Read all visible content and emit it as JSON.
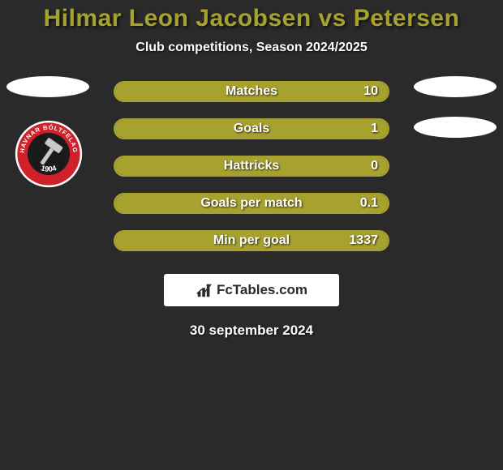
{
  "colors": {
    "background": "#2a2a2a",
    "title": "#a7a22f",
    "row_border": "#a7a22f",
    "bar_fill": "#a7a22f",
    "text": "#ffffff",
    "logo_strip_bg": "#ffffff",
    "logo_text": "#2a2a2a",
    "badge_outer": "#ffffff",
    "badge_ring": "#d0202a",
    "badge_inner": "#1a1a1a",
    "badge_ring_text": "#ffffff"
  },
  "title": {
    "text": "Hilmar Leon Jacobsen vs Petersen",
    "fontsize": 30
  },
  "subtitle": {
    "text": "Club competitions, Season 2024/2025",
    "fontsize": 16
  },
  "stats": {
    "label_fontsize": 16,
    "value_fontsize": 16,
    "rows": [
      {
        "label": "Matches",
        "value": "10",
        "fill_pct": 100
      },
      {
        "label": "Goals",
        "value": "1",
        "fill_pct": 100
      },
      {
        "label": "Hattricks",
        "value": "0",
        "fill_pct": 100
      },
      {
        "label": "Goals per match",
        "value": "0.1",
        "fill_pct": 100
      },
      {
        "label": "Min per goal",
        "value": "1337",
        "fill_pct": 100
      }
    ]
  },
  "badge": {
    "top_text": "HAVNAR BÓLTFELAG",
    "year": "1904"
  },
  "logo": {
    "text_prefix": "Fc",
    "text_rest": "Tables.com",
    "fontsize": 17
  },
  "date": {
    "text": "30 september 2024",
    "fontsize": 17
  }
}
